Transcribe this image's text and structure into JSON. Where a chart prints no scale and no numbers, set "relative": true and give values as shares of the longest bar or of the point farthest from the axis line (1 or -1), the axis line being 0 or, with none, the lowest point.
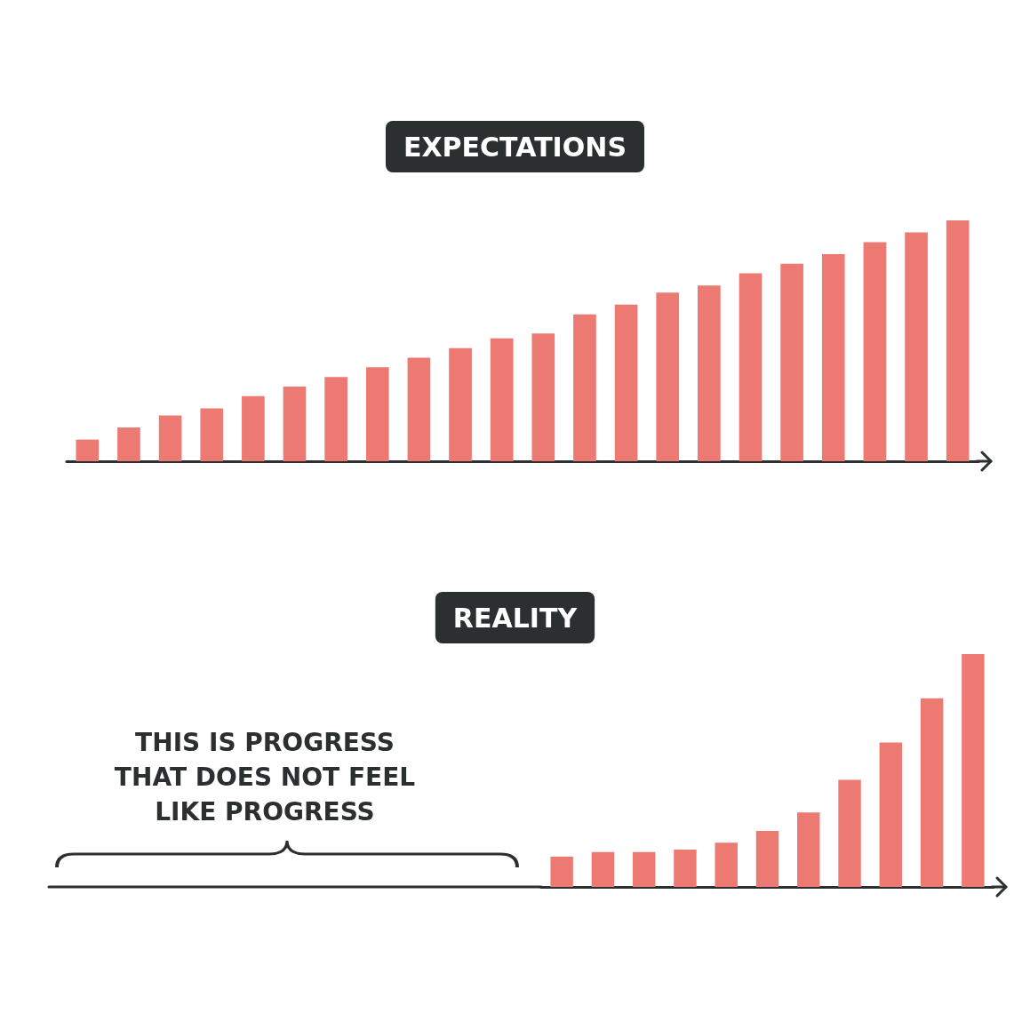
{
  "chart_data": [
    {
      "type": "bar",
      "title": "EXPECTATIONS",
      "relative": true,
      "grid": false,
      "categories": [
        null,
        null,
        null,
        null,
        null,
        null,
        null,
        null,
        null,
        null,
        null,
        null,
        null,
        null,
        null,
        null,
        null,
        null,
        null,
        null,
        null,
        null
      ],
      "series": [
        {
          "color": "#ec7a72",
          "values": [
            0.09,
            0.14,
            0.19,
            0.22,
            0.27,
            0.31,
            0.35,
            0.39,
            0.43,
            0.47,
            0.51,
            0.53,
            0.61,
            0.65,
            0.7,
            0.73,
            0.78,
            0.82,
            0.86,
            0.91,
            0.95,
            1
          ]
        }
      ]
    },
    {
      "type": "bar",
      "title": "REALITY",
      "relative": true,
      "grid": false,
      "annotations": [
        "THIS IS PROGRESS\nTHAT DOES NOT FEEL\nLIKE PROGRESS"
      ],
      "categories": [
        null,
        null,
        null,
        null,
        null,
        null,
        null,
        null,
        null,
        null,
        null
      ],
      "series": [
        {
          "color": "#ec7a72",
          "values": [
            0.13,
            0.15,
            0.15,
            0.16,
            0.19,
            0.24,
            0.32,
            0.46,
            0.62,
            0.81,
            1
          ]
        }
      ]
    }
  ]
}
